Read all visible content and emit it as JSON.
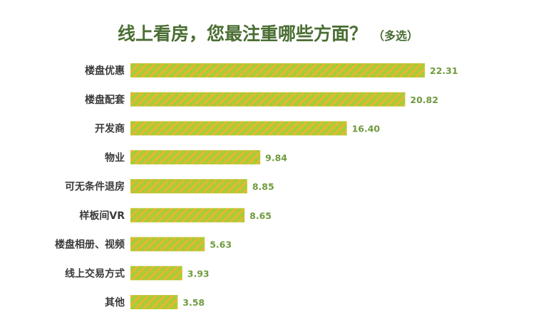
{
  "title": "线上看房，您最注重哪些方面？",
  "subtitle": "（多选）",
  "colors": {
    "title": "#4a6e33",
    "bar_green": "#a8cc3a",
    "bar_stripe": "#e9b62c",
    "value_label": "#6f9a3e",
    "category_label": "#3a3a3a"
  },
  "chart_data": {
    "type": "bar",
    "orientation": "horizontal",
    "categories": [
      "楼盘优惠",
      "楼盘配套",
      "开发商",
      "物业",
      "可无条件退房",
      "样板间VR",
      "楼盘相册、视频",
      "线上交易方式",
      "其他"
    ],
    "values": [
      22.31,
      20.82,
      16.4,
      9.84,
      8.85,
      8.65,
      5.63,
      3.93,
      3.58
    ],
    "value_labels": [
      "22.31",
      "20.82",
      "16.40",
      "9.84",
      "8.85",
      "8.65",
      "5.63",
      "3.93",
      "3.58"
    ],
    "xlim": [
      0,
      22.31
    ],
    "grid": false,
    "legend": "none"
  }
}
